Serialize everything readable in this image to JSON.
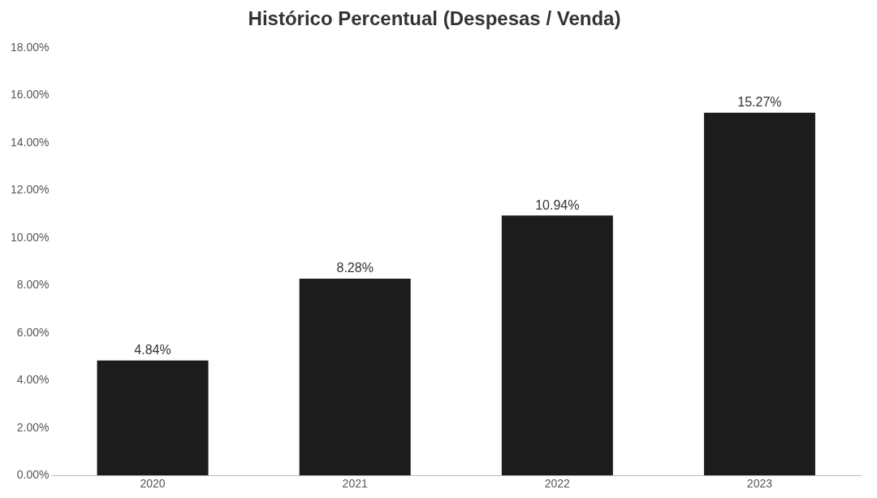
{
  "chart_data": {
    "type": "bar",
    "title": "Histórico Percentual (Despesas / Venda)",
    "categories": [
      "2020",
      "2021",
      "2022",
      "2023"
    ],
    "values": [
      4.84,
      8.28,
      10.94,
      15.27
    ],
    "value_labels": [
      "4.84%",
      "8.28%",
      "10.94%",
      "15.27%"
    ],
    "color": "#1c1c1c",
    "ylim": [
      0,
      18
    ],
    "yticks": [
      {
        "value": 0,
        "label": "0.00%"
      },
      {
        "value": 2,
        "label": "2.00%"
      },
      {
        "value": 4,
        "label": "4.00%"
      },
      {
        "value": 6,
        "label": "6.00%"
      },
      {
        "value": 8,
        "label": "8.00%"
      },
      {
        "value": 10,
        "label": "10.00%"
      },
      {
        "value": 12,
        "label": "12.00%"
      },
      {
        "value": 14,
        "label": "14.00%"
      },
      {
        "value": 16,
        "label": "16.00%"
      },
      {
        "value": 18,
        "label": "18.00%"
      }
    ],
    "grid": false,
    "legend": false
  }
}
